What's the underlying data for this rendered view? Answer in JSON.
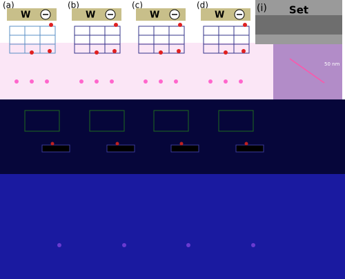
{
  "panels": [
    {
      "label": "(a)",
      "electrode": "W"
    },
    {
      "label": "(b)",
      "electrode": "W"
    },
    {
      "label": "(c)",
      "electrode": "W"
    },
    {
      "label": "(d)",
      "electrode": "W"
    }
  ],
  "panel_i": {
    "label": "(i)",
    "title": "Set",
    "scale": "50 nm"
  }
}
